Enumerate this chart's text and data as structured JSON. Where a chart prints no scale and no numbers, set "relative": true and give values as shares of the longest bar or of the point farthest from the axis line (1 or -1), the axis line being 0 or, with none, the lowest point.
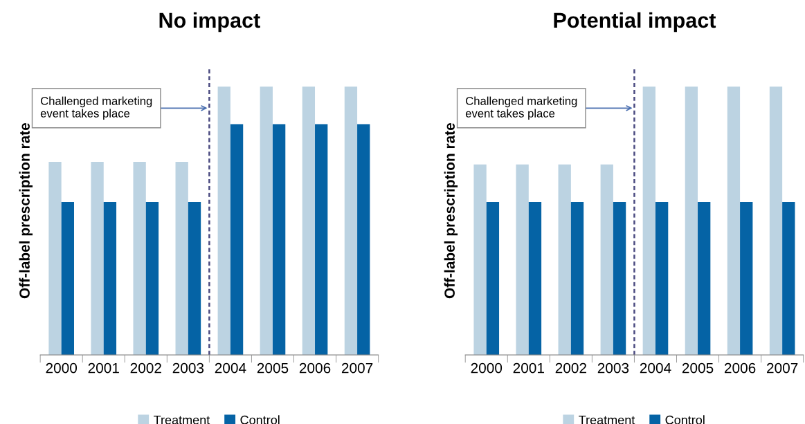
{
  "chart_data": [
    {
      "type": "bar",
      "title": "No impact",
      "ylabel": "Off-label prescription rate",
      "relative": true,
      "categories": [
        "2000",
        "2001",
        "2002",
        "2003",
        "2004",
        "2005",
        "2006",
        "2007"
      ],
      "series": [
        {
          "name": "Treatment",
          "color": "#bcd3e2",
          "values": [
            0.72,
            0.72,
            0.72,
            0.72,
            1,
            1,
            1,
            1
          ]
        },
        {
          "name": "Control",
          "color": "#0563a5",
          "values": [
            0.57,
            0.57,
            0.57,
            0.57,
            0.86,
            0.86,
            0.86,
            0.86
          ]
        }
      ],
      "annotations": [
        "Challenged marketing\nevent takes place"
      ],
      "legend": "bottom",
      "grid": false,
      "tick_labels": "x"
    },
    {
      "type": "bar",
      "title": "Potential impact",
      "ylabel": "Off-label prescription rate",
      "relative": true,
      "categories": [
        "2000",
        "2001",
        "2002",
        "2003",
        "2004",
        "2005",
        "2006",
        "2007"
      ],
      "series": [
        {
          "name": "Treatment",
          "color": "#bcd3e2",
          "values": [
            0.71,
            0.71,
            0.71,
            0.71,
            1,
            1,
            1,
            1
          ]
        },
        {
          "name": "Control",
          "color": "#0563a5",
          "values": [
            0.57,
            0.57,
            0.57,
            0.57,
            0.57,
            0.57,
            0.57,
            0.57
          ]
        }
      ],
      "annotations": [
        "Challenged marketing\nevent takes place"
      ],
      "legend": "bottom",
      "grid": false,
      "tick_labels": "x"
    }
  ]
}
